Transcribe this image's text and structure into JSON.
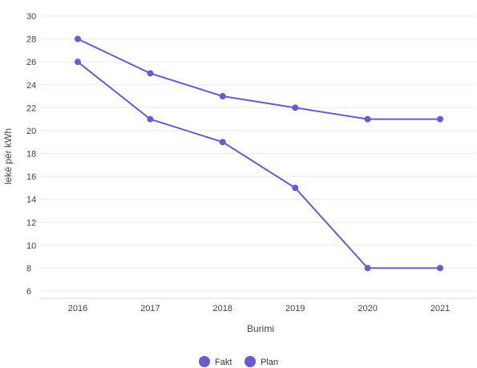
{
  "chart_data": {
    "type": "line",
    "categories": [
      "2016",
      "2017",
      "2018",
      "2019",
      "2020",
      "2021"
    ],
    "series": [
      {
        "name": "Fakt",
        "values": [
          28,
          25,
          23,
          22,
          21,
          21
        ]
      },
      {
        "name": "Plan",
        "values": [
          26,
          21,
          19,
          15,
          8,
          8
        ]
      }
    ],
    "yticks": [
      6,
      8,
      10,
      12,
      14,
      16,
      18,
      20,
      22,
      24,
      26,
      28,
      30
    ],
    "ylim": [
      6,
      30
    ],
    "xlabel": "Burimi",
    "ylabel": "lekë për kWh",
    "grid": true,
    "legend": "bottom-center",
    "colors": {
      "line": "#6a5acd",
      "marker": "#6a5acd",
      "grid": "#ececec"
    }
  }
}
